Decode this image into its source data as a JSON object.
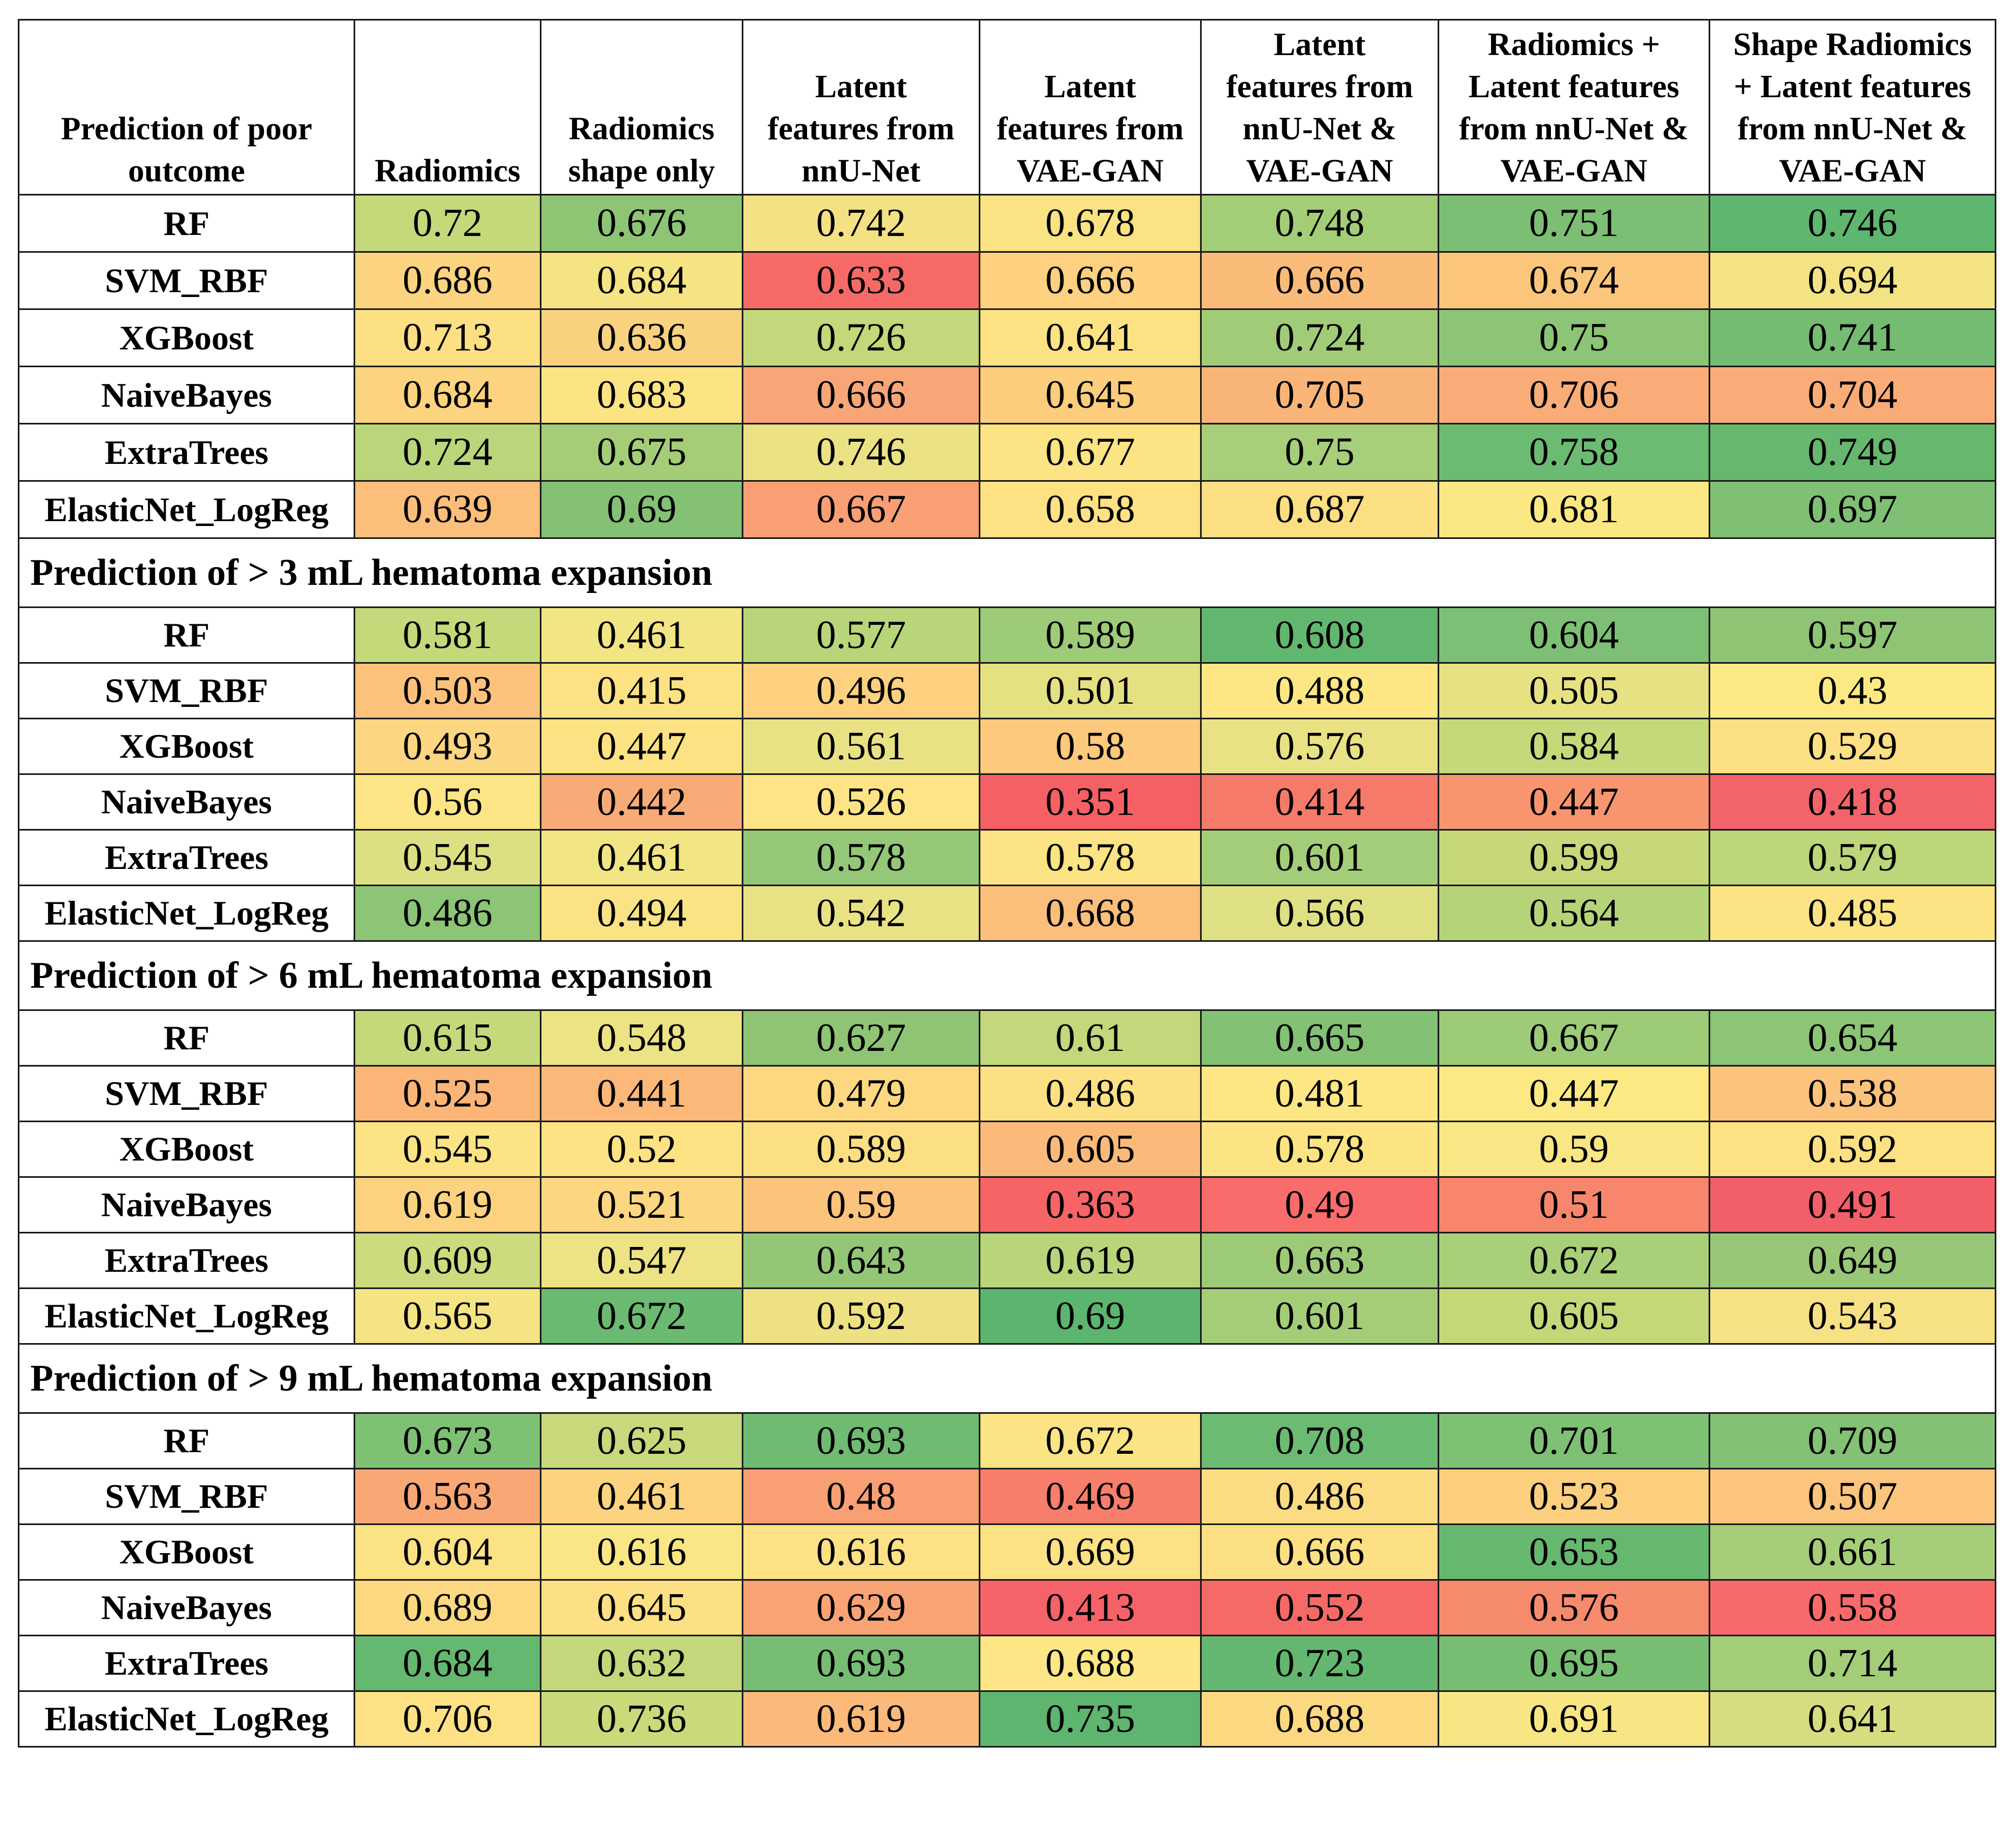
{
  "table": {
    "header": {
      "corner": "Prediction of poor\noutcome",
      "columns": [
        "Radiomics",
        "Radiomics\nshape only",
        "Latent\nfeatures from\nnnU-Net",
        "Latent\nfeatures from\nVAE-GAN",
        "Latent\nfeatures from\nnnU-Net &\nVAE-GAN",
        "Radiomics +\nLatent features\nfrom nnU-Net &\nVAE-GAN",
        "Shape Radiomics\n+ Latent features\nfrom nnU-Net &\nVAE-GAN"
      ]
    },
    "sections": [
      {
        "title": "",
        "rows": [
          {
            "model": "RF",
            "values": [
              "0.72",
              "0.676",
              "0.742",
              "0.678",
              "0.748",
              "0.751",
              "0.746"
            ],
            "colors": [
              "#c4d97a",
              "#8ec574",
              "#f3e183",
              "#f9e382",
              "#a4cd78",
              "#7cbe74",
              "#5fb66f"
            ]
          },
          {
            "model": "SVM_RBF",
            "values": [
              "0.686",
              "0.684",
              "0.633",
              "0.666",
              "0.666",
              "0.674",
              "0.694"
            ],
            "colors": [
              "#fcd37f",
              "#f6e483",
              "#f56a66",
              "#fdd17f",
              "#fbbb78",
              "#fbc67c",
              "#f4e383"
            ]
          },
          {
            "model": "XGBoost",
            "values": [
              "0.713",
              "0.636",
              "0.726",
              "0.641",
              "0.724",
              "0.75",
              "0.741"
            ],
            "colors": [
              "#fde084",
              "#f9d27f",
              "#c2d87a",
              "#fde284",
              "#a1cc77",
              "#8cc575",
              "#74bc71"
            ]
          },
          {
            "model": "NaiveBayes",
            "values": [
              "0.684",
              "0.683",
              "0.666",
              "0.645",
              "0.705",
              "0.706",
              "0.704"
            ],
            "colors": [
              "#fcd37f",
              "#fde483",
              "#f8a577",
              "#fccd7d",
              "#f9b478",
              "#f9ac78",
              "#f9ac78"
            ]
          },
          {
            "model": "ExtraTrees",
            "values": [
              "0.724",
              "0.675",
              "0.746",
              "0.677",
              "0.75",
              "0.758",
              "0.749"
            ],
            "colors": [
              "#bad67a",
              "#a5cd78",
              "#eae284",
              "#fce384",
              "#a7ce78",
              "#6cbb72",
              "#66b86f"
            ]
          },
          {
            "model": "ElasticNet_LogReg",
            "values": [
              "0.639",
              "0.69",
              "0.667",
              "0.658",
              "0.687",
              "0.681",
              "0.697"
            ],
            "colors": [
              "#fcbe7b",
              "#84c174",
              "#f89f74",
              "#fde183",
              "#fcde83",
              "#fbe883",
              "#7fc074"
            ]
          }
        ]
      },
      {
        "title": "Prediction of > 3 mL hematoma expansion",
        "rows": [
          {
            "model": "RF",
            "values": [
              "0.581",
              "0.461",
              "0.577",
              "0.589",
              "0.608",
              "0.604",
              "0.597"
            ],
            "colors": [
              "#c4d97a",
              "#f2e584",
              "#b9d57a",
              "#9ecb77",
              "#62b76f",
              "#7dbf74",
              "#8ec474"
            ]
          },
          {
            "model": "SVM_RBF",
            "values": [
              "0.503",
              "0.415",
              "0.496",
              "0.501",
              "0.488",
              "0.505",
              "0.43"
            ],
            "colors": [
              "#fcc27b",
              "#fde283",
              "#fdd17f",
              "#e4e182",
              "#fde784",
              "#e6e283",
              "#fde984"
            ]
          },
          {
            "model": "XGBoost",
            "values": [
              "0.493",
              "0.447",
              "0.561",
              "0.58",
              "0.576",
              "0.584",
              "0.529"
            ],
            "colors": [
              "#fdd681",
              "#fde283",
              "#e8e284",
              "#fcc97d",
              "#e9e284",
              "#c6d97a",
              "#fde083"
            ]
          },
          {
            "model": "NaiveBayes",
            "values": [
              "0.56",
              "0.442",
              "0.526",
              "0.351",
              "0.414",
              "0.447",
              "0.418"
            ],
            "colors": [
              "#fde484",
              "#f9ab77",
              "#fee485",
              "#f56065",
              "#f57a6a",
              "#f8956f",
              "#f2636a"
            ]
          },
          {
            "model": "ExtraTrees",
            "values": [
              "0.545",
              "0.461",
              "0.578",
              "0.578",
              "0.601",
              "0.599",
              "0.579"
            ],
            "colors": [
              "#dde082",
              "#f2e584",
              "#94c777",
              "#fce383",
              "#a3cd78",
              "#c6d87a",
              "#bcd67a"
            ]
          },
          {
            "model": "ElasticNet_LogReg",
            "values": [
              "0.486",
              "0.494",
              "0.542",
              "0.668",
              "0.566",
              "0.564",
              "0.485"
            ],
            "colors": [
              "#8bc575",
              "#f9e384",
              "#e9e284",
              "#fbbe7b",
              "#dfe083",
              "#b5d47a",
              "#fce383"
            ]
          }
        ]
      },
      {
        "title": "Prediction of > 6 mL hematoma expansion",
        "rows": [
          {
            "model": "RF",
            "values": [
              "0.615",
              "0.548",
              "0.627",
              "0.61",
              "0.665",
              "0.667",
              "0.654"
            ],
            "colors": [
              "#c4d97a",
              "#ece385",
              "#8ec474",
              "#c3d87a",
              "#83c174",
              "#9ecb77",
              "#8cc575"
            ]
          },
          {
            "model": "SVM_RBF",
            "values": [
              "0.525",
              "0.441",
              "0.479",
              "0.486",
              "0.481",
              "0.447",
              "0.538"
            ],
            "colors": [
              "#fbb577",
              "#fbb878",
              "#fdd880",
              "#fde083",
              "#fce784",
              "#fde984",
              "#fcc37d"
            ]
          },
          {
            "model": "XGBoost",
            "values": [
              "0.545",
              "0.52",
              "0.589",
              "0.605",
              "0.578",
              "0.59",
              "0.592"
            ],
            "colors": [
              "#fce383",
              "#fde384",
              "#fcdf82",
              "#fbba79",
              "#fde483",
              "#f9e684",
              "#fde183"
            ]
          },
          {
            "model": "NaiveBayes",
            "values": [
              "0.619",
              "0.521",
              "0.59",
              "0.363",
              "0.49",
              "0.51",
              "0.491"
            ],
            "colors": [
              "#fcd17f",
              "#fcd680",
              "#fbc37c",
              "#f66466",
              "#f86c6b",
              "#f7866c",
              "#f35f69"
            ]
          },
          {
            "model": "ExtraTrees",
            "values": [
              "0.609",
              "0.547",
              "0.643",
              "0.619",
              "0.663",
              "0.672",
              "0.649"
            ],
            "colors": [
              "#cbdb7d",
              "#ede385",
              "#93c777",
              "#b8d57a",
              "#9dca77",
              "#a9d078",
              "#98c877"
            ]
          },
          {
            "model": "ElasticNet_LogReg",
            "values": [
              "0.565",
              "0.672",
              "0.592",
              "0.69",
              "0.601",
              "0.605",
              "0.543"
            ],
            "colors": [
              "#f5e484",
              "#6bba71",
              "#ede184",
              "#5cb56e",
              "#a5cd78",
              "#c4d879",
              "#f6e184"
            ]
          }
        ]
      },
      {
        "title": "Prediction of > 9 mL hematoma expansion",
        "rows": [
          {
            "model": "RF",
            "values": [
              "0.673",
              "0.625",
              "0.693",
              "0.672",
              "0.708",
              "0.701",
              "0.709"
            ],
            "colors": [
              "#7ec074",
              "#c8d97b",
              "#6fbb71",
              "#fbe483",
              "#6cbb72",
              "#7ec074",
              "#83c174"
            ]
          },
          {
            "model": "SVM_RBF",
            "values": [
              "0.563",
              "0.461",
              "0.48",
              "0.469",
              "0.486",
              "0.523",
              "0.507"
            ],
            "colors": [
              "#f9a775",
              "#fcd37f",
              "#f89f74",
              "#f67e6b",
              "#fcdc82",
              "#fccf7e",
              "#fcc57d"
            ]
          },
          {
            "model": "XGBoost",
            "values": [
              "0.604",
              "0.616",
              "0.616",
              "0.669",
              "0.666",
              "0.653",
              "0.661"
            ],
            "colors": [
              "#fbe283",
              "#f9e684",
              "#fde184",
              "#fde283",
              "#fde083",
              "#66b86f",
              "#a6ce78"
            ]
          },
          {
            "model": "NaiveBayes",
            "values": [
              "0.689",
              "0.645",
              "0.629",
              "0.413",
              "0.552",
              "0.576",
              "0.558"
            ],
            "colors": [
              "#fcd880",
              "#fde083",
              "#f9a375",
              "#f6626a",
              "#f56a67",
              "#f68a6c",
              "#f7696a"
            ]
          },
          {
            "model": "ExtraTrees",
            "values": [
              "0.684",
              "0.632",
              "0.693",
              "0.688",
              "0.723",
              "0.695",
              "0.714"
            ],
            "colors": [
              "#65b86f",
              "#c3d87a",
              "#76bd73",
              "#fde685",
              "#64b770",
              "#77be72",
              "#a4cd78"
            ]
          },
          {
            "model": "ElasticNet_LogReg",
            "values": [
              "0.706",
              "0.736",
              "0.619",
              "0.735",
              "0.688",
              "0.691",
              "0.641"
            ],
            "colors": [
              "#fde184",
              "#c9da7b",
              "#fbb97a",
              "#5db56f",
              "#fcd880",
              "#f8e584",
              "#d6dd80"
            ]
          }
        ]
      }
    ]
  }
}
